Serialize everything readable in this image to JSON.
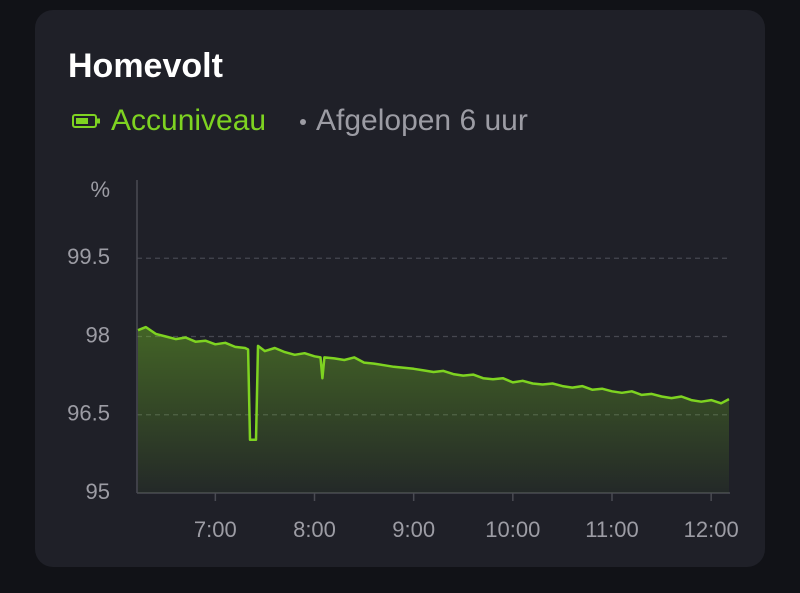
{
  "chart_data": {
    "type": "line",
    "title": "Homevolt",
    "subtitle": "Afgelopen 6 uur",
    "y_label": "%",
    "series": [
      {
        "name": "Accuniveau",
        "color": "#7ed321",
        "x": [
          6.22,
          6.3,
          6.4,
          6.5,
          6.6,
          6.7,
          6.8,
          6.9,
          7.0,
          7.1,
          7.2,
          7.3,
          7.33,
          7.35,
          7.41,
          7.43,
          7.5,
          7.6,
          7.7,
          7.8,
          7.9,
          8.0,
          8.06,
          8.08,
          8.1,
          8.2,
          8.3,
          8.4,
          8.5,
          8.6,
          8.7,
          8.8,
          8.9,
          9.0,
          9.1,
          9.2,
          9.3,
          9.4,
          9.5,
          9.6,
          9.7,
          9.8,
          9.9,
          10.0,
          10.1,
          10.2,
          10.3,
          10.4,
          10.5,
          10.6,
          10.7,
          10.8,
          10.9,
          11.0,
          11.1,
          11.2,
          11.3,
          11.4,
          11.5,
          11.6,
          11.7,
          11.8,
          11.9,
          12.0,
          12.1,
          12.18
        ],
        "values": [
          98.12,
          98.18,
          98.05,
          98.0,
          97.95,
          97.98,
          97.9,
          97.92,
          97.85,
          97.88,
          97.8,
          97.78,
          97.75,
          96.02,
          96.02,
          97.82,
          97.72,
          97.78,
          97.7,
          97.65,
          97.68,
          97.62,
          97.6,
          97.2,
          97.6,
          97.58,
          97.55,
          97.6,
          97.5,
          97.48,
          97.45,
          97.42,
          97.4,
          97.38,
          97.35,
          97.32,
          97.34,
          97.28,
          97.25,
          97.27,
          97.2,
          97.18,
          97.2,
          97.12,
          97.15,
          97.1,
          97.08,
          97.1,
          97.05,
          97.02,
          97.05,
          96.98,
          97.0,
          96.95,
          96.92,
          96.95,
          96.88,
          96.9,
          96.85,
          96.82,
          96.85,
          96.78,
          96.75,
          96.78,
          96.72,
          96.8
        ]
      }
    ],
    "xlim": [
      6.21,
      12.19
    ],
    "xticks": [
      {
        "value": 7,
        "label": "7:00"
      },
      {
        "value": 8,
        "label": "8:00"
      },
      {
        "value": 9,
        "label": "9:00"
      },
      {
        "value": 10,
        "label": "10:00"
      },
      {
        "value": 11,
        "label": "11:00"
      },
      {
        "value": 12,
        "label": "12:00"
      }
    ],
    "ylim": [
      95,
      101
    ],
    "yticks": [
      95,
      96.5,
      98,
      99.5
    ],
    "grid": true
  }
}
